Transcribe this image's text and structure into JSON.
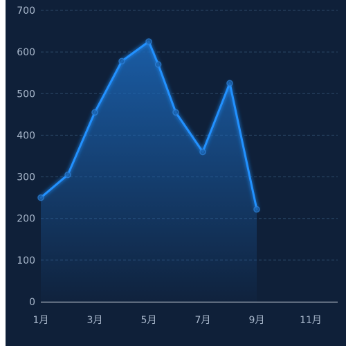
{
  "chart_data": {
    "type": "area",
    "title": "",
    "xlabel": "",
    "ylabel": "",
    "grid": true,
    "ylim": [
      0,
      700
    ],
    "y_ticks": [
      "0",
      "100",
      "200",
      "300",
      "400",
      "500",
      "600",
      "700"
    ],
    "x_ticks": [
      "1月",
      "3月",
      "5月",
      "7月",
      "9月",
      "11月"
    ],
    "x_range": [
      1,
      12
    ],
    "series": [
      {
        "x": [
          1,
          2,
          3,
          4,
          5,
          5.35,
          6,
          7,
          8,
          9
        ],
        "values": [
          250,
          305,
          455,
          578,
          625,
          570,
          455,
          360,
          525,
          222
        ]
      }
    ],
    "colors": {
      "line": "#2291ff",
      "area_top": "#1c67b8",
      "background": "#0f2039",
      "grid": "#2c4868",
      "tick_text": "#a9b8cc",
      "axis": "#e8eef6"
    }
  }
}
